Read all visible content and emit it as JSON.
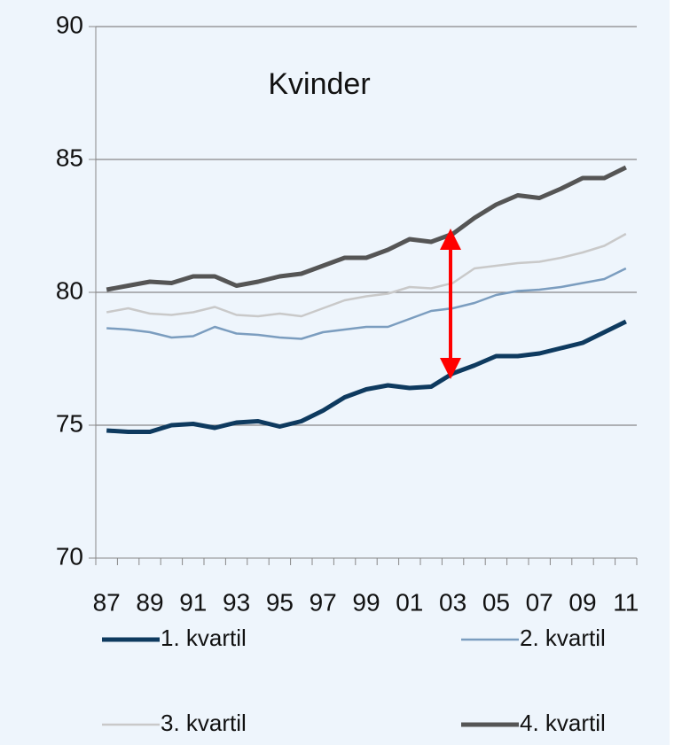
{
  "chart_data": {
    "type": "line",
    "title": "Kvinder",
    "categories": [
      "87",
      null,
      "89",
      null,
      "91",
      null,
      "93",
      null,
      "95",
      null,
      "97",
      null,
      "99",
      null,
      "01",
      null,
      "03",
      null,
      "05",
      null,
      "07",
      null,
      "09",
      null,
      "11"
    ],
    "series": [
      {
        "name": "1. kvartil",
        "color": "#0e3a5f",
        "line_width": 5,
        "values": [
          74.8,
          74.75,
          74.75,
          75.0,
          75.05,
          74.9,
          75.1,
          75.15,
          74.95,
          75.15,
          75.55,
          76.05,
          76.35,
          76.5,
          76.4,
          76.45,
          76.95,
          77.25,
          77.6,
          77.6,
          77.7,
          77.9,
          78.1,
          78.5,
          78.9
        ]
      },
      {
        "name": "2. kvartil",
        "color": "#7b9dbf",
        "line_width": 2.5,
        "values": [
          78.65,
          78.6,
          78.5,
          78.3,
          78.35,
          78.7,
          78.45,
          78.4,
          78.3,
          78.25,
          78.5,
          78.6,
          78.7,
          78.7,
          79.0,
          79.3,
          79.4,
          79.6,
          79.9,
          80.05,
          80.1,
          80.2,
          80.35,
          80.5,
          80.9
        ]
      },
      {
        "name": "3. kvartil",
        "color": "#c9c9c9",
        "line_width": 2.5,
        "values": [
          79.25,
          79.4,
          79.2,
          79.15,
          79.25,
          79.45,
          79.15,
          79.1,
          79.2,
          79.1,
          79.4,
          79.7,
          79.85,
          79.95,
          80.2,
          80.15,
          80.35,
          80.9,
          81.0,
          81.1,
          81.15,
          81.3,
          81.5,
          81.75,
          82.2
        ]
      },
      {
        "name": "4. kvartil",
        "color": "#555555",
        "line_width": 5,
        "values": [
          80.1,
          80.25,
          80.4,
          80.35,
          80.6,
          80.6,
          80.25,
          80.4,
          80.6,
          80.7,
          81.0,
          81.3,
          81.3,
          81.6,
          82.0,
          81.9,
          82.2,
          82.8,
          83.3,
          83.65,
          83.55,
          83.9,
          84.3,
          84.3,
          84.7
        ]
      }
    ],
    "ylim": [
      70,
      90
    ],
    "yticks": [
      70,
      75,
      80,
      85,
      90
    ],
    "grid": true,
    "legend": "bottom"
  }
}
